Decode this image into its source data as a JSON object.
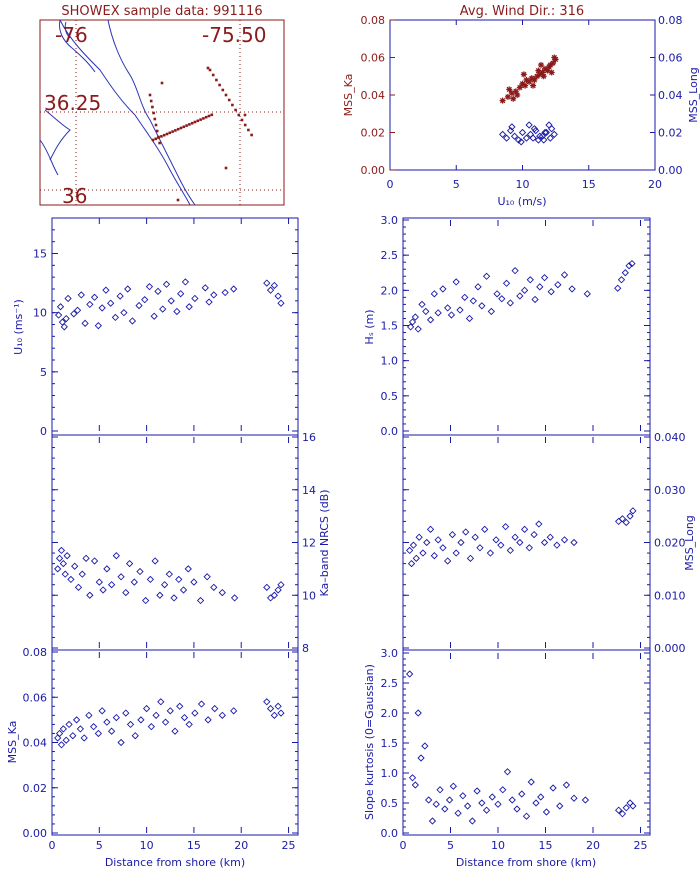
{
  "colors": {
    "red": "#8b1a1a",
    "blue": "#1a1aa8",
    "map_blue": "#2b35b8"
  },
  "map": {
    "title": "SHOWEX sample data: 991116",
    "lon_labels": [
      "-76",
      "-75.50"
    ],
    "lat_labels": [
      "36.25",
      "36"
    ]
  },
  "mss_panel": {
    "title": "Avg. Wind Dir.: 316",
    "xlabel": "U₁₀ (m/s)",
    "ylabel_left": "MSS_Ka",
    "ylabel_right": "MSS_Long",
    "xticks": [
      "0",
      "5",
      "10",
      "15",
      "20"
    ],
    "yticks_left": [
      "0.00",
      "0.02",
      "0.04",
      "0.06",
      "0.08"
    ],
    "yticks_right": [
      "0.00",
      "0.02",
      "0.04",
      "0.06",
      "0.08"
    ]
  },
  "panels": {
    "u10": {
      "ylabel": "U₁₀ (ms⁻¹)",
      "yticks": [
        "0",
        "5",
        "10",
        "15"
      ]
    },
    "hs": {
      "ylabel": "Hₛ (m)",
      "yticks": [
        "0.0",
        "0.5",
        "1.0",
        "1.5",
        "2.0",
        "2.5",
        "3.0"
      ]
    },
    "nrcs": {
      "ylabel": "Ka–band NRCS (dB)",
      "yticks": [
        "8",
        "10",
        "12",
        "14",
        "16"
      ]
    },
    "mss_long": {
      "ylabel": "MSS_Long",
      "yticks": [
        "0.000",
        "0.010",
        "0.020",
        "0.030",
        "0.040"
      ]
    },
    "mss_ka": {
      "ylabel": "MSS_Ka",
      "yticks": [
        "0.00",
        "0.02",
        "0.04",
        "0.06",
        "0.08"
      ]
    },
    "kurt": {
      "ylabel": "Slope kurtosis (0=Gaussian)",
      "yticks": [
        "0.0",
        "0.5",
        "1.0",
        "1.5",
        "2.0",
        "2.5",
        "3.0"
      ]
    },
    "xticks": [
      "0",
      "5",
      "10",
      "15",
      "20",
      "25"
    ],
    "xlabel": "Distance from shore (km)"
  },
  "chart_data": [
    {
      "type": "scatter",
      "title": "Avg. Wind Dir.: 316",
      "xlabel": "U10 (m/s)",
      "xlim": [
        0,
        20
      ],
      "ylim": [
        0,
        0.08
      ],
      "series": [
        {
          "name": "MSS_Ka",
          "marker": "asterisk",
          "color": "#8b1a1a",
          "x": [
            8.5,
            8.9,
            9.2,
            9.5,
            9.8,
            10.0,
            10.2,
            10.5,
            10.7,
            10.9,
            11.1,
            11.3,
            11.5,
            11.7,
            11.9,
            12.1,
            12.3,
            12.5,
            9.0,
            9.6,
            10.3,
            10.8,
            11.2,
            11.6,
            12.0,
            12.4,
            9.3,
            10.1,
            11.4,
            12.2
          ],
          "y": [
            0.037,
            0.039,
            0.041,
            0.042,
            0.044,
            0.046,
            0.045,
            0.047,
            0.049,
            0.048,
            0.05,
            0.051,
            0.052,
            0.054,
            0.053,
            0.056,
            0.057,
            0.059,
            0.043,
            0.04,
            0.048,
            0.045,
            0.053,
            0.05,
            0.055,
            0.06,
            0.038,
            0.051,
            0.056,
            0.052
          ]
        },
        {
          "name": "MSS_Long",
          "marker": "diamond",
          "color": "#1a1aa8",
          "x": [
            8.5,
            8.8,
            9.1,
            9.4,
            9.7,
            10.0,
            10.3,
            10.6,
            10.9,
            11.2,
            11.5,
            11.8,
            12.1,
            12.4,
            9.2,
            9.9,
            10.5,
            11.0,
            11.6,
            12.2,
            11.3,
            11.7,
            12.0,
            10.8
          ],
          "y": [
            0.019,
            0.017,
            0.021,
            0.018,
            0.016,
            0.02,
            0.017,
            0.019,
            0.022,
            0.016,
            0.018,
            0.02,
            0.017,
            0.019,
            0.023,
            0.015,
            0.024,
            0.021,
            0.016,
            0.022,
            0.018,
            0.02,
            0.024,
            0.017
          ]
        }
      ]
    },
    {
      "type": "scatter",
      "ylabel": "U10 (ms-1)",
      "xlim": [
        0,
        26
      ],
      "ylim": [
        0,
        18
      ],
      "x": [
        0.7,
        0.9,
        1.1,
        1.3,
        1.5,
        1.7,
        2.3,
        2.7,
        3.1,
        3.5,
        4.0,
        4.5,
        4.9,
        5.3,
        5.7,
        6.2,
        6.7,
        7.2,
        7.6,
        8.0,
        8.5,
        9.2,
        9.8,
        10.3,
        10.8,
        11.2,
        11.7,
        12.1,
        12.6,
        13.2,
        13.6,
        14.1,
        14.5,
        15.1,
        16.2,
        16.6,
        17.1,
        18.3,
        19.2,
        22.7,
        23.1,
        23.5,
        23.9,
        24.2
      ],
      "y": [
        9.8,
        10.5,
        9.2,
        8.8,
        9.5,
        11.2,
        9.9,
        10.2,
        11.5,
        9.1,
        10.7,
        11.3,
        8.9,
        10.4,
        11.9,
        10.8,
        9.6,
        11.4,
        10.0,
        12.0,
        9.3,
        10.6,
        11.1,
        12.2,
        9.7,
        11.8,
        10.3,
        12.4,
        11.0,
        10.1,
        11.6,
        12.6,
        10.5,
        11.2,
        12.1,
        10.9,
        11.5,
        11.7,
        12.0,
        12.5,
        11.9,
        12.3,
        11.4,
        10.8
      ]
    },
    {
      "type": "scatter",
      "ylabel": "Hs (m)",
      "xlim": [
        0,
        26
      ],
      "ylim": [
        0,
        3.0
      ],
      "x": [
        0.8,
        1.0,
        1.3,
        1.6,
        2.0,
        2.4,
        2.9,
        3.3,
        3.7,
        4.2,
        4.7,
        5.1,
        5.6,
        6.0,
        6.5,
        7.0,
        7.4,
        7.9,
        8.3,
        8.8,
        9.3,
        9.9,
        10.4,
        10.9,
        11.3,
        11.8,
        12.3,
        12.8,
        13.4,
        13.9,
        14.4,
        14.9,
        15.6,
        16.3,
        17.0,
        17.8,
        19.4,
        22.6,
        23.0,
        23.4,
        23.8,
        24.1
      ],
      "y": [
        1.48,
        1.55,
        1.62,
        1.45,
        1.8,
        1.7,
        1.58,
        1.95,
        1.68,
        2.02,
        1.75,
        1.65,
        2.12,
        1.72,
        1.9,
        1.6,
        1.85,
        2.05,
        1.78,
        2.2,
        1.7,
        1.95,
        1.88,
        2.1,
        1.82,
        2.28,
        1.92,
        2.0,
        2.15,
        1.87,
        2.05,
        2.18,
        1.98,
        2.08,
        2.22,
        2.02,
        1.95,
        2.03,
        2.15,
        2.25,
        2.35,
        2.38
      ]
    },
    {
      "type": "scatter",
      "ylabel": "Ka-band NRCS (dB)",
      "xlim": [
        0,
        26
      ],
      "ylim": [
        8,
        16
      ],
      "x": [
        0.6,
        0.8,
        1.0,
        1.2,
        1.4,
        1.6,
        2.0,
        2.4,
        2.8,
        3.2,
        3.6,
        4.0,
        4.5,
        5.0,
        5.4,
        5.8,
        6.3,
        6.8,
        7.3,
        7.8,
        8.2,
        8.7,
        9.3,
        9.9,
        10.4,
        10.9,
        11.4,
        11.9,
        12.4,
        12.9,
        13.4,
        13.9,
        14.4,
        15.0,
        15.7,
        16.4,
        17.1,
        18.0,
        19.3,
        22.7,
        23.1,
        23.5,
        23.9,
        24.2
      ],
      "y": [
        11.0,
        11.4,
        11.7,
        11.2,
        10.8,
        11.5,
        10.6,
        11.1,
        10.3,
        10.8,
        11.4,
        10.0,
        11.3,
        10.5,
        10.2,
        11.0,
        10.4,
        11.5,
        10.7,
        10.1,
        11.2,
        10.5,
        10.9,
        9.8,
        10.6,
        11.3,
        10.0,
        10.4,
        10.8,
        9.9,
        10.6,
        10.2,
        11.0,
        10.5,
        9.8,
        10.7,
        10.3,
        10.1,
        9.9,
        10.3,
        9.9,
        10.0,
        10.2,
        10.4
      ]
    },
    {
      "type": "scatter",
      "ylabel": "MSS_Long",
      "xlim": [
        0,
        26
      ],
      "ylim": [
        0,
        0.04
      ],
      "x": [
        0.7,
        0.9,
        1.1,
        1.4,
        1.7,
        2.1,
        2.5,
        2.9,
        3.3,
        3.7,
        4.2,
        4.7,
        5.2,
        5.6,
        6.1,
        6.6,
        7.1,
        7.6,
        8.1,
        8.6,
        9.2,
        9.8,
        10.3,
        10.8,
        11.3,
        11.8,
        12.3,
        12.8,
        13.3,
        13.8,
        14.3,
        14.9,
        15.5,
        16.2,
        17.0,
        18.0,
        22.7,
        23.1,
        23.5,
        23.9,
        24.2
      ],
      "y": [
        0.0185,
        0.016,
        0.0195,
        0.017,
        0.021,
        0.018,
        0.02,
        0.0225,
        0.0175,
        0.0205,
        0.019,
        0.0165,
        0.0215,
        0.018,
        0.02,
        0.022,
        0.017,
        0.021,
        0.019,
        0.0225,
        0.018,
        0.0205,
        0.0195,
        0.023,
        0.0185,
        0.021,
        0.02,
        0.0225,
        0.019,
        0.0215,
        0.0235,
        0.02,
        0.021,
        0.0195,
        0.0205,
        0.02,
        0.024,
        0.0245,
        0.0238,
        0.025,
        0.026
      ]
    },
    {
      "type": "scatter",
      "ylabel": "MSS_Ka",
      "xlim": [
        0,
        26
      ],
      "ylim": [
        0,
        0.08
      ],
      "x": [
        0.6,
        0.8,
        1.0,
        1.2,
        1.5,
        1.8,
        2.2,
        2.6,
        3.0,
        3.4,
        3.9,
        4.4,
        4.9,
        5.3,
        5.8,
        6.3,
        6.8,
        7.3,
        7.8,
        8.3,
        8.8,
        9.4,
        10.0,
        10.5,
        11.0,
        11.5,
        12.0,
        12.5,
        13.0,
        13.5,
        14.0,
        14.5,
        15.1,
        15.8,
        16.5,
        17.2,
        18.0,
        19.2,
        22.7,
        23.1,
        23.5,
        23.9,
        24.2
      ],
      "y": [
        0.042,
        0.044,
        0.039,
        0.046,
        0.041,
        0.048,
        0.043,
        0.05,
        0.046,
        0.042,
        0.052,
        0.047,
        0.044,
        0.054,
        0.049,
        0.045,
        0.051,
        0.04,
        0.053,
        0.048,
        0.043,
        0.05,
        0.055,
        0.047,
        0.052,
        0.058,
        0.049,
        0.054,
        0.045,
        0.056,
        0.051,
        0.048,
        0.053,
        0.057,
        0.05,
        0.055,
        0.052,
        0.054,
        0.058,
        0.055,
        0.052,
        0.056,
        0.053
      ]
    },
    {
      "type": "scatter",
      "ylabel": "Slope kurtosis (0=Gaussian)",
      "xlabel": "Distance from shore (km)",
      "xlim": [
        0,
        26
      ],
      "ylim": [
        0,
        3.0
      ],
      "x": [
        0.7,
        1.0,
        1.3,
        1.6,
        1.9,
        2.3,
        2.7,
        3.1,
        3.5,
        3.9,
        4.4,
        4.9,
        5.3,
        5.8,
        6.3,
        6.8,
        7.3,
        7.8,
        8.3,
        8.8,
        9.4,
        10.0,
        10.5,
        11.0,
        11.5,
        12.0,
        12.5,
        13.0,
        13.5,
        14.0,
        14.5,
        15.1,
        15.8,
        16.5,
        17.2,
        18.0,
        19.2,
        22.7,
        23.1,
        23.5,
        23.9,
        24.2
      ],
      "y": [
        2.65,
        0.92,
        0.8,
        2.0,
        1.25,
        1.45,
        0.55,
        0.2,
        0.48,
        0.72,
        0.4,
        0.55,
        0.78,
        0.33,
        0.62,
        0.45,
        0.2,
        0.7,
        0.5,
        0.38,
        0.6,
        0.48,
        0.72,
        1.02,
        0.55,
        0.4,
        0.65,
        0.28,
        0.85,
        0.5,
        0.6,
        0.35,
        0.75,
        0.45,
        0.8,
        0.58,
        0.55,
        0.38,
        0.32,
        0.42,
        0.5,
        0.45
      ]
    }
  ]
}
